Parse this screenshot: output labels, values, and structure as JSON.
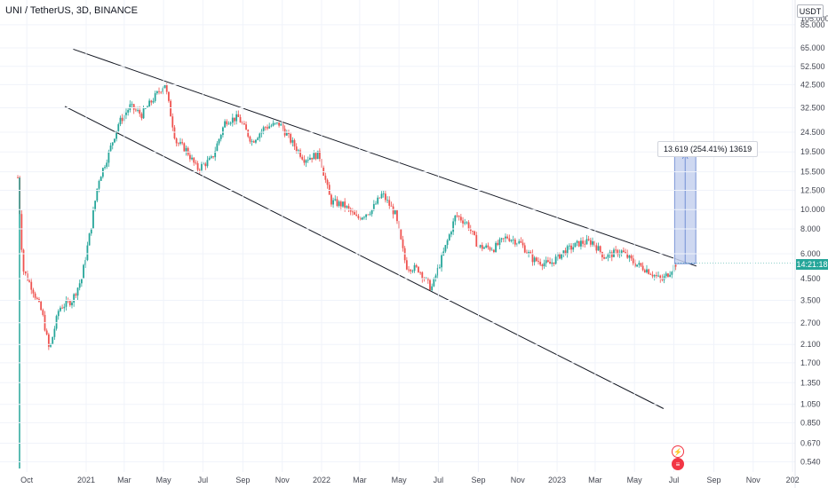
{
  "header": {
    "title": "UNI / TetherUS, 3D, BINANCE"
  },
  "price_scale": {
    "currency": "USDT",
    "current_label": "14:21:18",
    "top_cut": "105.000"
  },
  "measure": {
    "label": "13.619 (254.41%) 13619"
  },
  "icons": {
    "flash": "flash-icon",
    "flag": "us-flag-icon"
  },
  "colors": {
    "up": "#26a69a",
    "down": "#ef5350",
    "line": "#131722",
    "measure_fill": "#c5d1ee",
    "measure_stroke": "#5b7ccc"
  },
  "chart_data": {
    "type": "candlestick",
    "title": "",
    "y_scale": "log",
    "y_ticks": [
      85.0,
      65.0,
      52.5,
      42.5,
      32.5,
      24.5,
      19.5,
      15.5,
      12.5,
      10.0,
      8.0,
      6.0,
      4.5,
      3.5,
      2.7,
      2.1,
      1.7,
      1.35,
      1.05,
      0.85,
      0.67,
      0.54
    ],
    "y_tick_labels": [
      "85.000",
      "65.000",
      "52.500",
      "42.500",
      "32.500",
      "24.500",
      "19.500",
      "15.500",
      "12.500",
      "10.000",
      "8.000",
      "6.000",
      "4.500",
      "3.500",
      "2.700",
      "2.100",
      "1.700",
      "1.350",
      "1.050",
      "0.850",
      "0.670",
      "0.540"
    ],
    "x_tick_labels": [
      "Oct",
      "2021",
      "Mar",
      "May",
      "Jul",
      "Sep",
      "Nov",
      "2022",
      "Mar",
      "May",
      "Jul",
      "Sep",
      "Nov",
      "2023",
      "Mar",
      "May",
      "Jul",
      "Sep",
      "Nov",
      "202"
    ],
    "x_range": [
      "2020-09-17",
      "2024-01-05"
    ],
    "trendlines": [
      {
        "name": "upper",
        "from": [
          "2020-12-12",
          64.0
        ],
        "to": [
          "2023-08-05",
          5.2
        ]
      },
      {
        "name": "lower",
        "from": [
          "2020-11-29",
          33.0
        ],
        "to": [
          "2023-06-15",
          1.0
        ]
      }
    ],
    "measure_box": {
      "x_from": "2023-07-02",
      "x_to": "2023-08-04",
      "y_from": 5.35,
      "y_to": 18.97,
      "change": "13.619 (254.41%)"
    },
    "last_price": 5.4,
    "anchors": [
      [
        "2020-09-17",
        14.5
      ],
      [
        "2020-09-25",
        5.0
      ],
      [
        "2020-10-10",
        4.0
      ],
      [
        "2020-10-25",
        3.0
      ],
      [
        "2020-11-05",
        1.95
      ],
      [
        "2020-11-20",
        3.2
      ],
      [
        "2020-12-10",
        3.5
      ],
      [
        "2020-12-25",
        4.5
      ],
      [
        "2021-01-08",
        8.0
      ],
      [
        "2021-01-20",
        14.0
      ],
      [
        "2021-02-02",
        18.0
      ],
      [
        "2021-02-20",
        27.0
      ],
      [
        "2021-03-10",
        33.0
      ],
      [
        "2021-03-28",
        30.0
      ],
      [
        "2021-04-15",
        36.0
      ],
      [
        "2021-05-03",
        43.0
      ],
      [
        "2021-05-20",
        22.0
      ],
      [
        "2021-06-05",
        20.0
      ],
      [
        "2021-06-22",
        16.0
      ],
      [
        "2021-07-15",
        18.0
      ],
      [
        "2021-08-05",
        28.0
      ],
      [
        "2021-08-25",
        29.0
      ],
      [
        "2021-09-15",
        22.0
      ],
      [
        "2021-10-05",
        26.0
      ],
      [
        "2021-10-28",
        27.0
      ],
      [
        "2021-11-15",
        22.0
      ],
      [
        "2021-12-05",
        18.0
      ],
      [
        "2021-12-28",
        19.0
      ],
      [
        "2022-01-15",
        11.0
      ],
      [
        "2022-02-05",
        10.5
      ],
      [
        "2022-02-25",
        9.0
      ],
      [
        "2022-03-20",
        10.0
      ],
      [
        "2022-04-05",
        12.0
      ],
      [
        "2022-04-25",
        9.5
      ],
      [
        "2022-05-12",
        5.2
      ],
      [
        "2022-06-01",
        5.0
      ],
      [
        "2022-06-20",
        4.0
      ],
      [
        "2022-07-10",
        6.2
      ],
      [
        "2022-07-28",
        9.4
      ],
      [
        "2022-08-15",
        8.5
      ],
      [
        "2022-09-01",
        6.5
      ],
      [
        "2022-09-25",
        6.4
      ],
      [
        "2022-10-15",
        7.3
      ],
      [
        "2022-11-05",
        6.8
      ],
      [
        "2022-11-25",
        5.6
      ],
      [
        "2022-12-20",
        5.3
      ],
      [
        "2023-01-10",
        6.1
      ],
      [
        "2023-02-05",
        6.8
      ],
      [
        "2023-02-25",
        6.9
      ],
      [
        "2023-03-15",
        5.8
      ],
      [
        "2023-04-10",
        6.2
      ],
      [
        "2023-04-30",
        5.4
      ],
      [
        "2023-05-20",
        5.0
      ],
      [
        "2023-06-12",
        4.4
      ],
      [
        "2023-06-25",
        4.9
      ],
      [
        "2023-07-05",
        5.4
      ]
    ]
  }
}
